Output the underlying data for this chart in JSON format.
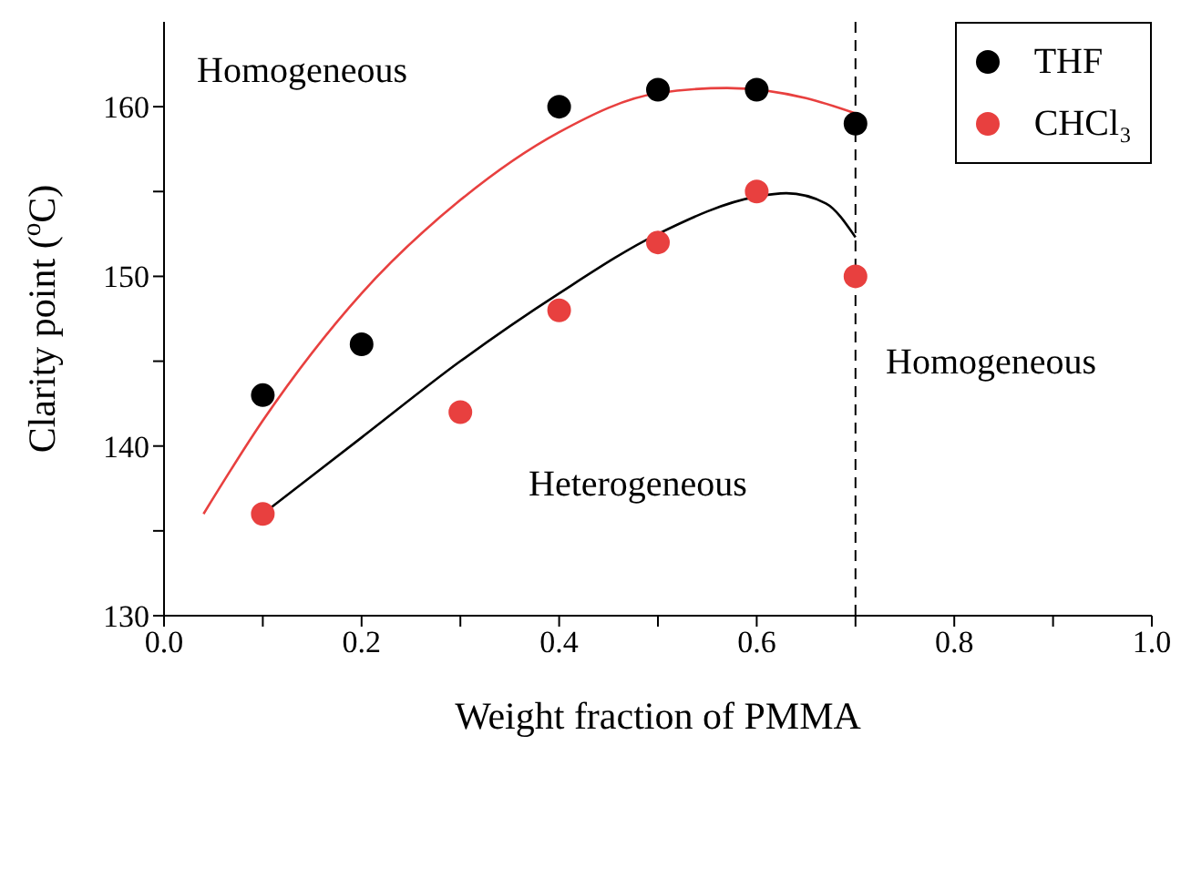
{
  "chart_data": {
    "type": "scatter",
    "xlabel": "Weight fraction of PMMA",
    "ylabel": "Clarity point ($^{o}$C)",
    "xlim": [
      0,
      1
    ],
    "ylim": [
      130,
      165
    ],
    "xticks": [
      {
        "value": 0,
        "label": "0.0"
      },
      {
        "value": 0.1,
        "label": null
      },
      {
        "value": 0.2,
        "label": "0.2"
      },
      {
        "value": 0.3,
        "label": null
      },
      {
        "value": 0.4,
        "label": "0.4"
      },
      {
        "value": 0.5,
        "label": null
      },
      {
        "value": 0.6,
        "label": "0.6"
      },
      {
        "value": 0.7,
        "label": null
      },
      {
        "value": 0.8,
        "label": "0.8"
      },
      {
        "value": 0.9,
        "label": null
      },
      {
        "value": 1,
        "label": "1.0"
      }
    ],
    "yticks": [
      130,
      {
        "value": 135,
        "label": null
      },
      140,
      {
        "value": 145,
        "label": null
      },
      150,
      {
        "value": 155,
        "label": null
      },
      160
    ],
    "series": [
      {
        "name": "THF",
        "color": "#000000",
        "marker": "circle",
        "x": [
          0.1,
          0.2,
          0.4,
          0.5,
          0.6,
          0.7
        ],
        "values": [
          143,
          146,
          160,
          161,
          161,
          159
        ]
      },
      {
        "name": "CHCl₃",
        "color": "#e8403f",
        "marker": "circle",
        "x": [
          0.1,
          0.3,
          0.4,
          0.5,
          0.6,
          0.7
        ],
        "values": [
          136,
          142,
          148,
          152,
          155,
          150
        ]
      },
      {
        "type": "line",
        "color": "#e8403f",
        "marker": "none",
        "x": [
          0.04,
          0.1,
          0.2,
          0.3,
          0.4,
          0.5,
          0.57,
          0.65,
          0.7
        ],
        "values": [
          136,
          141.5,
          149,
          154.5,
          158.5,
          160.8,
          161.1,
          160.5,
          159.6
        ]
      },
      {
        "type": "line",
        "color": "#000000",
        "marker": "none",
        "x": [
          0.1,
          0.2,
          0.3,
          0.4,
          0.5,
          0.6,
          0.63,
          0.67,
          0.7
        ],
        "values": [
          136,
          140.5,
          145,
          149,
          152.5,
          154.7,
          154.9,
          154.3,
          152.3
        ]
      }
    ],
    "ref_lines": [
      {
        "axis": "x",
        "value": 0.7,
        "color": "#000000",
        "line_style": "dashed"
      }
    ],
    "annotations": [
      "Homogeneous",
      "Homogeneous",
      "Heterogeneous"
    ],
    "grid": false,
    "legend": "top right"
  }
}
